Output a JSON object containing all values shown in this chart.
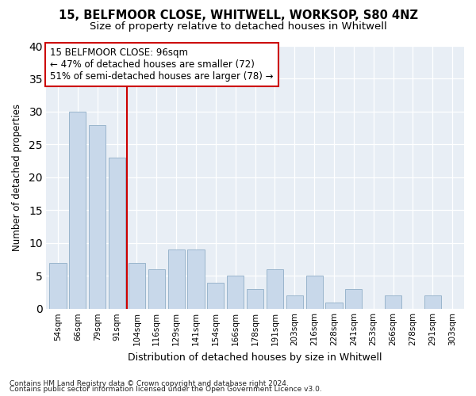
{
  "title1": "15, BELFMOOR CLOSE, WHITWELL, WORKSOP, S80 4NZ",
  "title2": "Size of property relative to detached houses in Whitwell",
  "xlabel": "Distribution of detached houses by size in Whitwell",
  "ylabel": "Number of detached properties",
  "categories": [
    "54sqm",
    "66sqm",
    "79sqm",
    "91sqm",
    "104sqm",
    "116sqm",
    "129sqm",
    "141sqm",
    "154sqm",
    "166sqm",
    "178sqm",
    "191sqm",
    "203sqm",
    "216sqm",
    "228sqm",
    "241sqm",
    "253sqm",
    "266sqm",
    "278sqm",
    "291sqm",
    "303sqm"
  ],
  "values": [
    7,
    30,
    28,
    23,
    7,
    6,
    9,
    9,
    4,
    5,
    3,
    6,
    2,
    5,
    1,
    3,
    0,
    2,
    0,
    2,
    0
  ],
  "bar_color": "#c8d8ea",
  "bar_edgecolor": "#9ab5cc",
  "vline_x_index": 3.5,
  "vline_color": "#cc0000",
  "annotation_line1": "15 BELFMOOR CLOSE: 96sqm",
  "annotation_line2": "← 47% of detached houses are smaller (72)",
  "annotation_line3": "51% of semi-detached houses are larger (78) →",
  "annotation_box_edgecolor": "#cc0000",
  "ylim": [
    0,
    40
  ],
  "yticks": [
    0,
    5,
    10,
    15,
    20,
    25,
    30,
    35,
    40
  ],
  "footer1": "Contains HM Land Registry data © Crown copyright and database right 2024.",
  "footer2": "Contains public sector information licensed under the Open Government Licence v3.0.",
  "bg_color": "#ffffff",
  "plot_bg_color": "#e8eef5"
}
